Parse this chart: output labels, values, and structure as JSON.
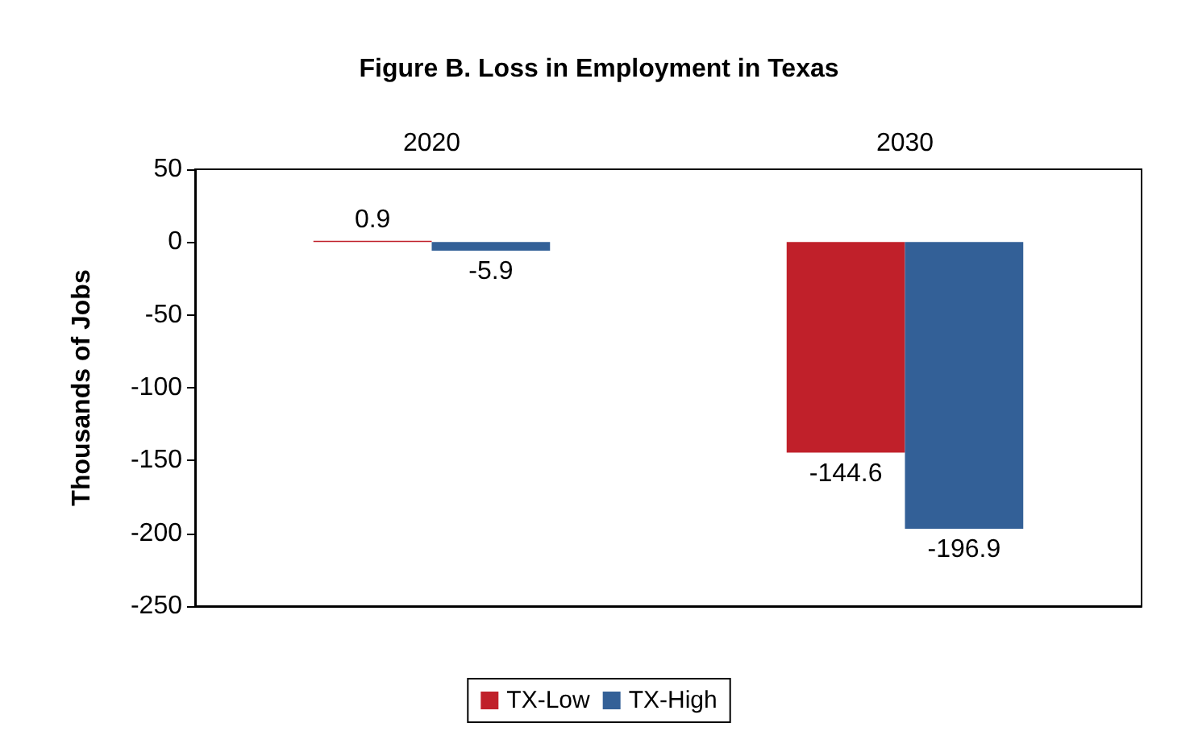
{
  "chart_data": {
    "type": "bar",
    "title": "Figure B. Loss in Employment in Texas",
    "ylabel": "Thousands of Jobs",
    "categories": [
      "2020",
      "2030"
    ],
    "series": [
      {
        "name": "TX-Low",
        "color": "#c0202a",
        "values": [
          0.9,
          -144.6
        ]
      },
      {
        "name": "TX-High",
        "color": "#336097",
        "values": [
          -5.9,
          -196.9
        ]
      }
    ],
    "ylim": [
      -250,
      50
    ],
    "yticks": [
      -250,
      -200,
      -150,
      -100,
      -50,
      0,
      50
    ],
    "data_labels": true,
    "grid": false,
    "legend": "bottom"
  }
}
